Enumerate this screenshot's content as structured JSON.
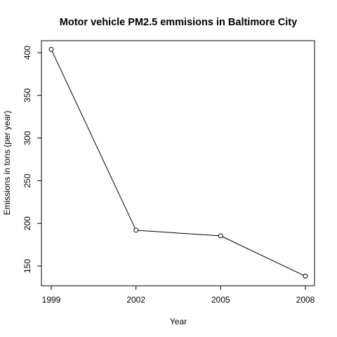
{
  "chart_data": {
    "type": "line",
    "title": "Motor vehicle PM2.5 emmisions in Baltimore City",
    "xlabel": "Year",
    "ylabel": "Emissions in tons (per year)",
    "x": [
      1999,
      2002,
      2005,
      2008
    ],
    "series": [
      {
        "values": [
          403.8,
          192.0,
          185.4,
          138.2
        ]
      }
    ],
    "x_ticks": [
      "1999",
      "2002",
      "2005",
      "2008"
    ],
    "y_ticks": [
      "150",
      "200",
      "250",
      "300",
      "350",
      "400"
    ],
    "xlim": [
      1999,
      2008
    ],
    "ylim": [
      150,
      400
    ],
    "grid": false,
    "marker": "open-circle",
    "line_color": "#000000"
  }
}
